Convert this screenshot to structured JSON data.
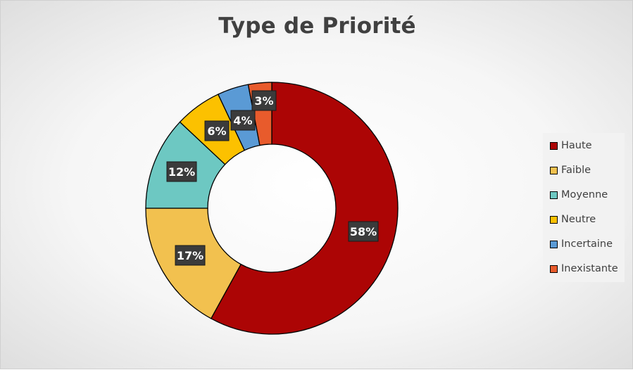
{
  "chart_data": {
    "type": "pie",
    "variant": "doughnut",
    "title": "Type de Priorité",
    "categories": [
      "Haute",
      "Faible",
      "Moyenne",
      "Neutre",
      "Incertaine",
      "Inexistante"
    ],
    "values": [
      58,
      17,
      12,
      6,
      4,
      3
    ],
    "data_labels": [
      "58%",
      "17%",
      "12%",
      "6%",
      "4%",
      "3%"
    ],
    "colors": [
      "#ac0505",
      "#f2c14f",
      "#6dc8c2",
      "#fcc100",
      "#5a9ad5",
      "#e85b2c"
    ],
    "legend_position": "right"
  }
}
